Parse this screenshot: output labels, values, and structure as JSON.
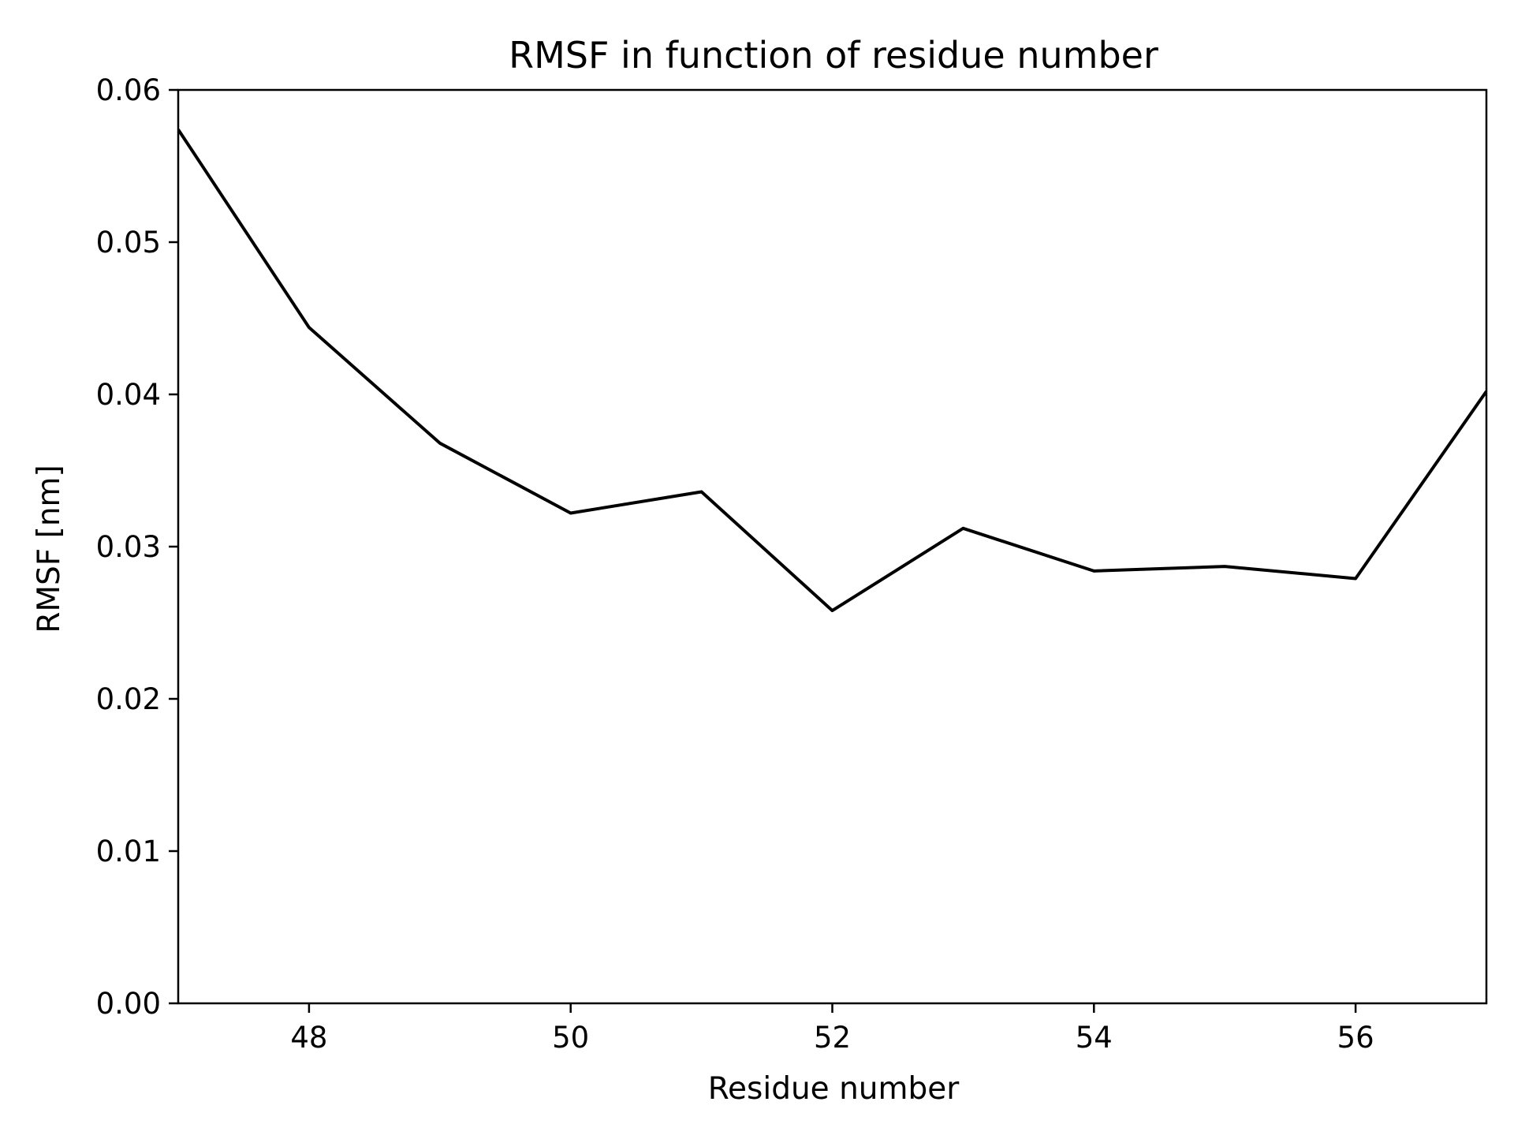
{
  "chart_data": {
    "type": "line",
    "title": "RMSF in function of residue number",
    "xlabel": "Residue number",
    "ylabel": "RMSF [nm]",
    "xlim": [
      47,
      57
    ],
    "ylim": [
      0.0,
      0.06
    ],
    "x_ticks": [
      "48",
      "50",
      "52",
      "54",
      "56"
    ],
    "y_ticks": [
      "0.00",
      "0.01",
      "0.02",
      "0.03",
      "0.04",
      "0.05",
      "0.06"
    ],
    "grid": false,
    "legend": "none",
    "series": [
      {
        "color": "#000000",
        "x": [
          47,
          48,
          49,
          50,
          51,
          52,
          53,
          54,
          55,
          56,
          57
        ],
        "y": [
          0.0574,
          0.0444,
          0.0368,
          0.0322,
          0.0336,
          0.0258,
          0.0312,
          0.0284,
          0.0287,
          0.0279,
          0.0402
        ]
      }
    ]
  }
}
